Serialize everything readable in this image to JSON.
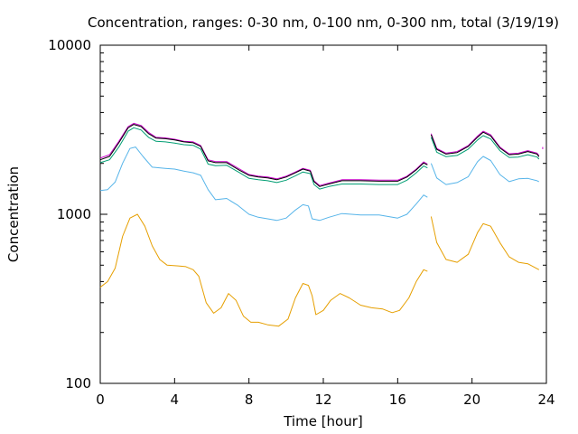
{
  "chart_data": {
    "type": "line",
    "title": "Concentration, ranges: 0-30 nm, 0-100 nm, 0-300 nm, total (3/19/19)",
    "xlabel": "Time [hour]",
    "ylabel": "Concentration",
    "xlim": [
      0,
      24
    ],
    "ylim": [
      100,
      10000
    ],
    "yscale": "log",
    "grid": false,
    "legend": "none",
    "x_ticks": [
      0,
      4,
      8,
      12,
      16,
      20,
      24
    ],
    "y_ticks": [
      100,
      1000,
      10000
    ],
    "x_tick_labels": [
      "0",
      "4",
      "8",
      "12",
      "16",
      "20",
      "24"
    ],
    "y_tick_labels": [
      "100",
      "1000",
      "10000"
    ],
    "series": [
      {
        "color": "#cc00cc",
        "segments": [
          [
            [
              0,
              2150
            ],
            [
              0.5,
              2250
            ],
            [
              1,
              2700
            ],
            [
              1.5,
              3300
            ],
            [
              1.8,
              3450
            ],
            [
              2.2,
              3350
            ],
            [
              2.6,
              3050
            ],
            [
              3,
              2850
            ],
            [
              3.5,
              2830
            ],
            [
              4,
              2780
            ],
            [
              4.5,
              2700
            ],
            [
              5,
              2680
            ],
            [
              5.4,
              2550
            ],
            [
              5.8,
              2100
            ],
            [
              6.2,
              2050
            ],
            [
              6.8,
              2050
            ],
            [
              7.5,
              1850
            ],
            [
              8,
              1720
            ],
            [
              8.5,
              1680
            ],
            [
              9,
              1660
            ],
            [
              9.5,
              1620
            ],
            [
              10,
              1680
            ],
            [
              10.5,
              1780
            ],
            [
              10.9,
              1870
            ],
            [
              11.3,
              1820
            ],
            [
              11.5,
              1580
            ],
            [
              11.8,
              1480
            ],
            [
              12.3,
              1530
            ],
            [
              13,
              1600
            ],
            [
              14,
              1600
            ],
            [
              15,
              1590
            ],
            [
              16,
              1590
            ],
            [
              16.5,
              1680
            ],
            [
              17,
              1850
            ],
            [
              17.4,
              2040
            ],
            [
              17.6,
              1980
            ]
          ],
          [
            [
              17.8,
              3000
            ],
            [
              18.1,
              2450
            ],
            [
              18.6,
              2300
            ],
            [
              19.2,
              2350
            ],
            [
              19.8,
              2550
            ],
            [
              20.3,
              2900
            ],
            [
              20.6,
              3100
            ],
            [
              21,
              2950
            ],
            [
              21.5,
              2500
            ],
            [
              22,
              2280
            ],
            [
              22.5,
              2300
            ],
            [
              23,
              2380
            ],
            [
              23.5,
              2300
            ],
            [
              23.6,
              2220
            ]
          ],
          [
            [
              23.8,
              2500
            ],
            [
              23.8,
              2430
            ]
          ]
        ]
      },
      {
        "color": "#000000",
        "segments": [
          [
            [
              0,
              2100
            ],
            [
              0.5,
              2200
            ],
            [
              1,
              2650
            ],
            [
              1.5,
              3250
            ],
            [
              1.8,
              3400
            ],
            [
              2.2,
              3300
            ],
            [
              2.6,
              3000
            ],
            [
              3,
              2820
            ],
            [
              3.5,
              2800
            ],
            [
              4,
              2750
            ],
            [
              4.5,
              2680
            ],
            [
              5,
              2650
            ],
            [
              5.4,
              2520
            ],
            [
              5.8,
              2070
            ],
            [
              6.2,
              2020
            ],
            [
              6.8,
              2020
            ],
            [
              7.5,
              1820
            ],
            [
              8,
              1700
            ],
            [
              8.5,
              1660
            ],
            [
              9,
              1640
            ],
            [
              9.5,
              1600
            ],
            [
              10,
              1660
            ],
            [
              10.5,
              1760
            ],
            [
              10.9,
              1850
            ],
            [
              11.3,
              1800
            ],
            [
              11.5,
              1560
            ],
            [
              11.8,
              1460
            ],
            [
              12.3,
              1510
            ],
            [
              13,
              1580
            ],
            [
              14,
              1580
            ],
            [
              15,
              1570
            ],
            [
              16,
              1570
            ],
            [
              16.5,
              1660
            ],
            [
              17,
              1830
            ],
            [
              17.4,
              2010
            ],
            [
              17.6,
              1960
            ]
          ],
          [
            [
              17.8,
              2950
            ],
            [
              18.1,
              2420
            ],
            [
              18.6,
              2270
            ],
            [
              19.2,
              2320
            ],
            [
              19.8,
              2520
            ],
            [
              20.3,
              2860
            ],
            [
              20.6,
              3060
            ],
            [
              21,
              2910
            ],
            [
              21.5,
              2470
            ],
            [
              22,
              2250
            ],
            [
              22.5,
              2270
            ],
            [
              23,
              2350
            ],
            [
              23.5,
              2270
            ],
            [
              23.6,
              2190
            ]
          ]
        ]
      },
      {
        "color": "#009e73",
        "segments": [
          [
            [
              0,
              2020
            ],
            [
              0.5,
              2100
            ],
            [
              1,
              2500
            ],
            [
              1.5,
              3100
            ],
            [
              1.8,
              3250
            ],
            [
              2.2,
              3150
            ],
            [
              2.6,
              2850
            ],
            [
              3,
              2700
            ],
            [
              3.5,
              2680
            ],
            [
              4,
              2640
            ],
            [
              4.5,
              2580
            ],
            [
              5,
              2560
            ],
            [
              5.4,
              2430
            ],
            [
              5.8,
              1980
            ],
            [
              6.2,
              1940
            ],
            [
              6.8,
              1950
            ],
            [
              7.5,
              1760
            ],
            [
              8,
              1630
            ],
            [
              8.5,
              1600
            ],
            [
              9,
              1580
            ],
            [
              9.5,
              1540
            ],
            [
              10,
              1590
            ],
            [
              10.5,
              1690
            ],
            [
              10.9,
              1780
            ],
            [
              11.3,
              1740
            ],
            [
              11.5,
              1500
            ],
            [
              11.8,
              1410
            ],
            [
              12.3,
              1460
            ],
            [
              13,
              1510
            ],
            [
              14,
              1510
            ],
            [
              15,
              1500
            ],
            [
              16,
              1500
            ],
            [
              16.5,
              1590
            ],
            [
              17,
              1760
            ],
            [
              17.4,
              1930
            ],
            [
              17.6,
              1880
            ]
          ],
          [
            [
              17.8,
              2850
            ],
            [
              18.1,
              2330
            ],
            [
              18.6,
              2190
            ],
            [
              19.2,
              2230
            ],
            [
              19.8,
              2430
            ],
            [
              20.3,
              2750
            ],
            [
              20.6,
              2920
            ],
            [
              21,
              2790
            ],
            [
              21.5,
              2380
            ],
            [
              22,
              2170
            ],
            [
              22.5,
              2180
            ],
            [
              23,
              2250
            ],
            [
              23.5,
              2180
            ],
            [
              23.6,
              2120
            ]
          ]
        ]
      },
      {
        "color": "#56b4e9",
        "segments": [
          [
            [
              0,
              1380
            ],
            [
              0.4,
              1400
            ],
            [
              0.8,
              1550
            ],
            [
              1.2,
              2000
            ],
            [
              1.6,
              2450
            ],
            [
              1.9,
              2500
            ],
            [
              2.3,
              2200
            ],
            [
              2.8,
              1900
            ],
            [
              3.5,
              1870
            ],
            [
              4,
              1850
            ],
            [
              4.5,
              1800
            ],
            [
              5,
              1760
            ],
            [
              5.4,
              1700
            ],
            [
              5.8,
              1400
            ],
            [
              6.2,
              1220
            ],
            [
              6.8,
              1240
            ],
            [
              7.4,
              1130
            ],
            [
              8,
              1000
            ],
            [
              8.5,
              960
            ],
            [
              9,
              940
            ],
            [
              9.5,
              920
            ],
            [
              10,
              950
            ],
            [
              10.5,
              1060
            ],
            [
              10.9,
              1140
            ],
            [
              11.2,
              1120
            ],
            [
              11.4,
              940
            ],
            [
              11.8,
              920
            ],
            [
              12.3,
              960
            ],
            [
              13,
              1010
            ],
            [
              14,
              990
            ],
            [
              15,
              990
            ],
            [
              16,
              950
            ],
            [
              16.5,
              1000
            ],
            [
              17,
              1150
            ],
            [
              17.4,
              1300
            ],
            [
              17.6,
              1260
            ]
          ],
          [
            [
              17.8,
              2000
            ],
            [
              18.1,
              1640
            ],
            [
              18.6,
              1500
            ],
            [
              19.2,
              1540
            ],
            [
              19.8,
              1670
            ],
            [
              20.3,
              2050
            ],
            [
              20.6,
              2200
            ],
            [
              21,
              2080
            ],
            [
              21.5,
              1720
            ],
            [
              22,
              1560
            ],
            [
              22.5,
              1620
            ],
            [
              23,
              1630
            ],
            [
              23.5,
              1580
            ],
            [
              23.6,
              1560
            ]
          ]
        ]
      },
      {
        "color": "#e69f00",
        "segments": [
          [
            [
              0,
              370
            ],
            [
              0.4,
              400
            ],
            [
              0.8,
              480
            ],
            [
              1.2,
              740
            ],
            [
              1.6,
              950
            ],
            [
              2,
              1000
            ],
            [
              2.4,
              850
            ],
            [
              2.8,
              650
            ],
            [
              3.2,
              540
            ],
            [
              3.6,
              500
            ],
            [
              4.2,
              495
            ],
            [
              4.6,
              490
            ],
            [
              5,
              470
            ],
            [
              5.3,
              430
            ],
            [
              5.7,
              300
            ],
            [
              6.1,
              260
            ],
            [
              6.5,
              280
            ],
            [
              6.9,
              340
            ],
            [
              7.3,
              310
            ],
            [
              7.7,
              250
            ],
            [
              8.1,
              230
            ],
            [
              8.5,
              230
            ],
            [
              9,
              222
            ],
            [
              9.6,
              218
            ],
            [
              10.1,
              240
            ],
            [
              10.5,
              320
            ],
            [
              10.9,
              390
            ],
            [
              11.2,
              380
            ],
            [
              11.4,
              330
            ],
            [
              11.6,
              255
            ],
            [
              12,
              270
            ],
            [
              12.4,
              310
            ],
            [
              12.9,
              340
            ],
            [
              13.4,
              320
            ],
            [
              14,
              290
            ],
            [
              14.6,
              280
            ],
            [
              15.2,
              275
            ],
            [
              15.7,
              262
            ],
            [
              16.1,
              270
            ],
            [
              16.6,
              320
            ],
            [
              17,
              400
            ],
            [
              17.4,
              470
            ],
            [
              17.6,
              460
            ]
          ],
          [
            [
              17.8,
              970
            ],
            [
              18.1,
              680
            ],
            [
              18.6,
              540
            ],
            [
              19.2,
              520
            ],
            [
              19.8,
              580
            ],
            [
              20.3,
              780
            ],
            [
              20.6,
              880
            ],
            [
              21,
              850
            ],
            [
              21.5,
              680
            ],
            [
              22,
              560
            ],
            [
              22.5,
              520
            ],
            [
              23,
              510
            ],
            [
              23.6,
              470
            ]
          ]
        ]
      }
    ]
  }
}
